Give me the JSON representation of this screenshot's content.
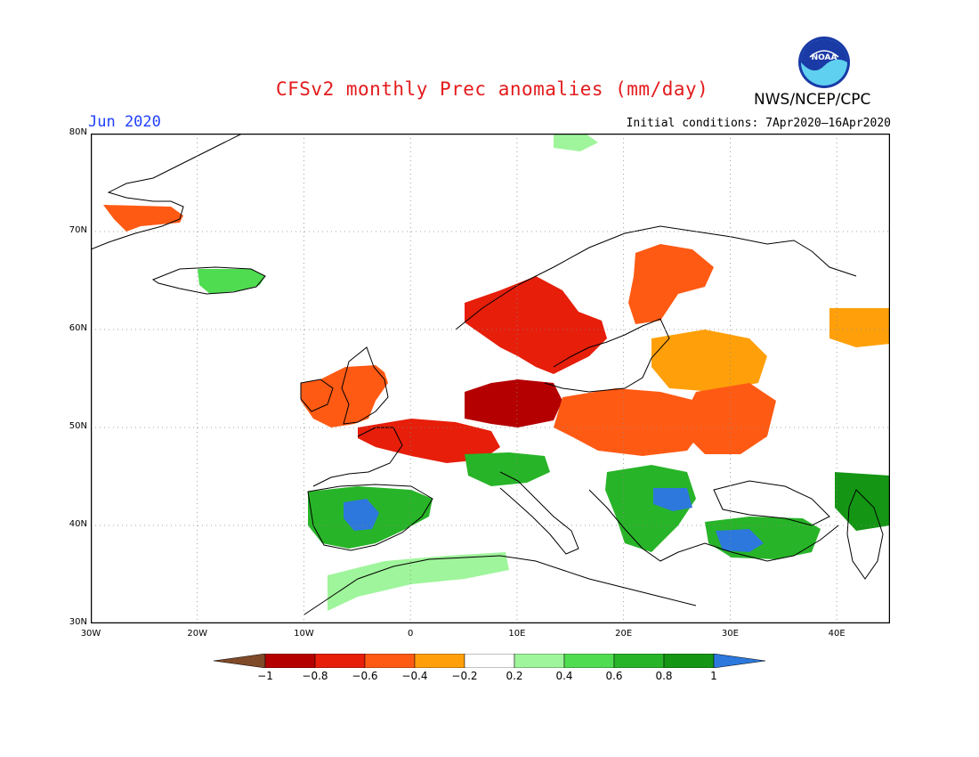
{
  "header": {
    "title": "CFSv2 monthly Prec anomalies (mm/day)",
    "agency": "NWS/NCEP/CPC",
    "month": "Jun 2020",
    "initial_conditions": "Initial conditions: 7Apr2020–16Apr2020",
    "logo_text": "NOAA"
  },
  "map": {
    "lat_labels": [
      "80N",
      "70N",
      "60N",
      "50N",
      "40N",
      "30N"
    ],
    "lon_labels": [
      "30W",
      "20W",
      "10W",
      "0",
      "10E",
      "20E",
      "30E",
      "40E"
    ],
    "lat_range": [
      30,
      80
    ],
    "lon_range": [
      -30,
      45
    ],
    "anomaly_regions": [
      {
        "name": "greenland-east-coast",
        "value": -0.5
      },
      {
        "name": "iceland",
        "value": 0.5
      },
      {
        "name": "svalbard",
        "value": 0.3
      },
      {
        "name": "uk-ireland",
        "value": -0.5
      },
      {
        "name": "scandinavia-south",
        "value": -0.7
      },
      {
        "name": "finland-north",
        "value": -0.5
      },
      {
        "name": "benelux-germany",
        "value": -0.9
      },
      {
        "name": "france",
        "value": -0.7
      },
      {
        "name": "central-europe",
        "value": -0.5
      },
      {
        "name": "baltic-belarus",
        "value": -0.4
      },
      {
        "name": "ukraine",
        "value": -0.6
      },
      {
        "name": "caspian-north",
        "value": -0.4
      },
      {
        "name": "iberia",
        "value": 0.7
      },
      {
        "name": "iberia-core",
        "value": 1.0
      },
      {
        "name": "north-africa",
        "value": 0.3
      },
      {
        "name": "alps-north-italy",
        "value": 0.6
      },
      {
        "name": "balkans",
        "value": 0.7
      },
      {
        "name": "bulgaria-core",
        "value": 1.0
      },
      {
        "name": "turkey",
        "value": 0.7
      },
      {
        "name": "turkey-core",
        "value": 1.0
      },
      {
        "name": "caucasus",
        "value": 0.8
      }
    ]
  },
  "legend": {
    "labels": [
      "−1",
      "−0.8",
      "−0.6",
      "−0.4",
      "−0.2",
      "0.2",
      "0.4",
      "0.6",
      "0.8",
      "1"
    ],
    "colors": [
      "#7f4a28",
      "#b40000",
      "#e61e0a",
      "#ff5a14",
      "#ffa00a",
      "#ffffff",
      "#9ff59b",
      "#50dc50",
      "#28b428",
      "#149614",
      "#2d78dc"
    ]
  }
}
